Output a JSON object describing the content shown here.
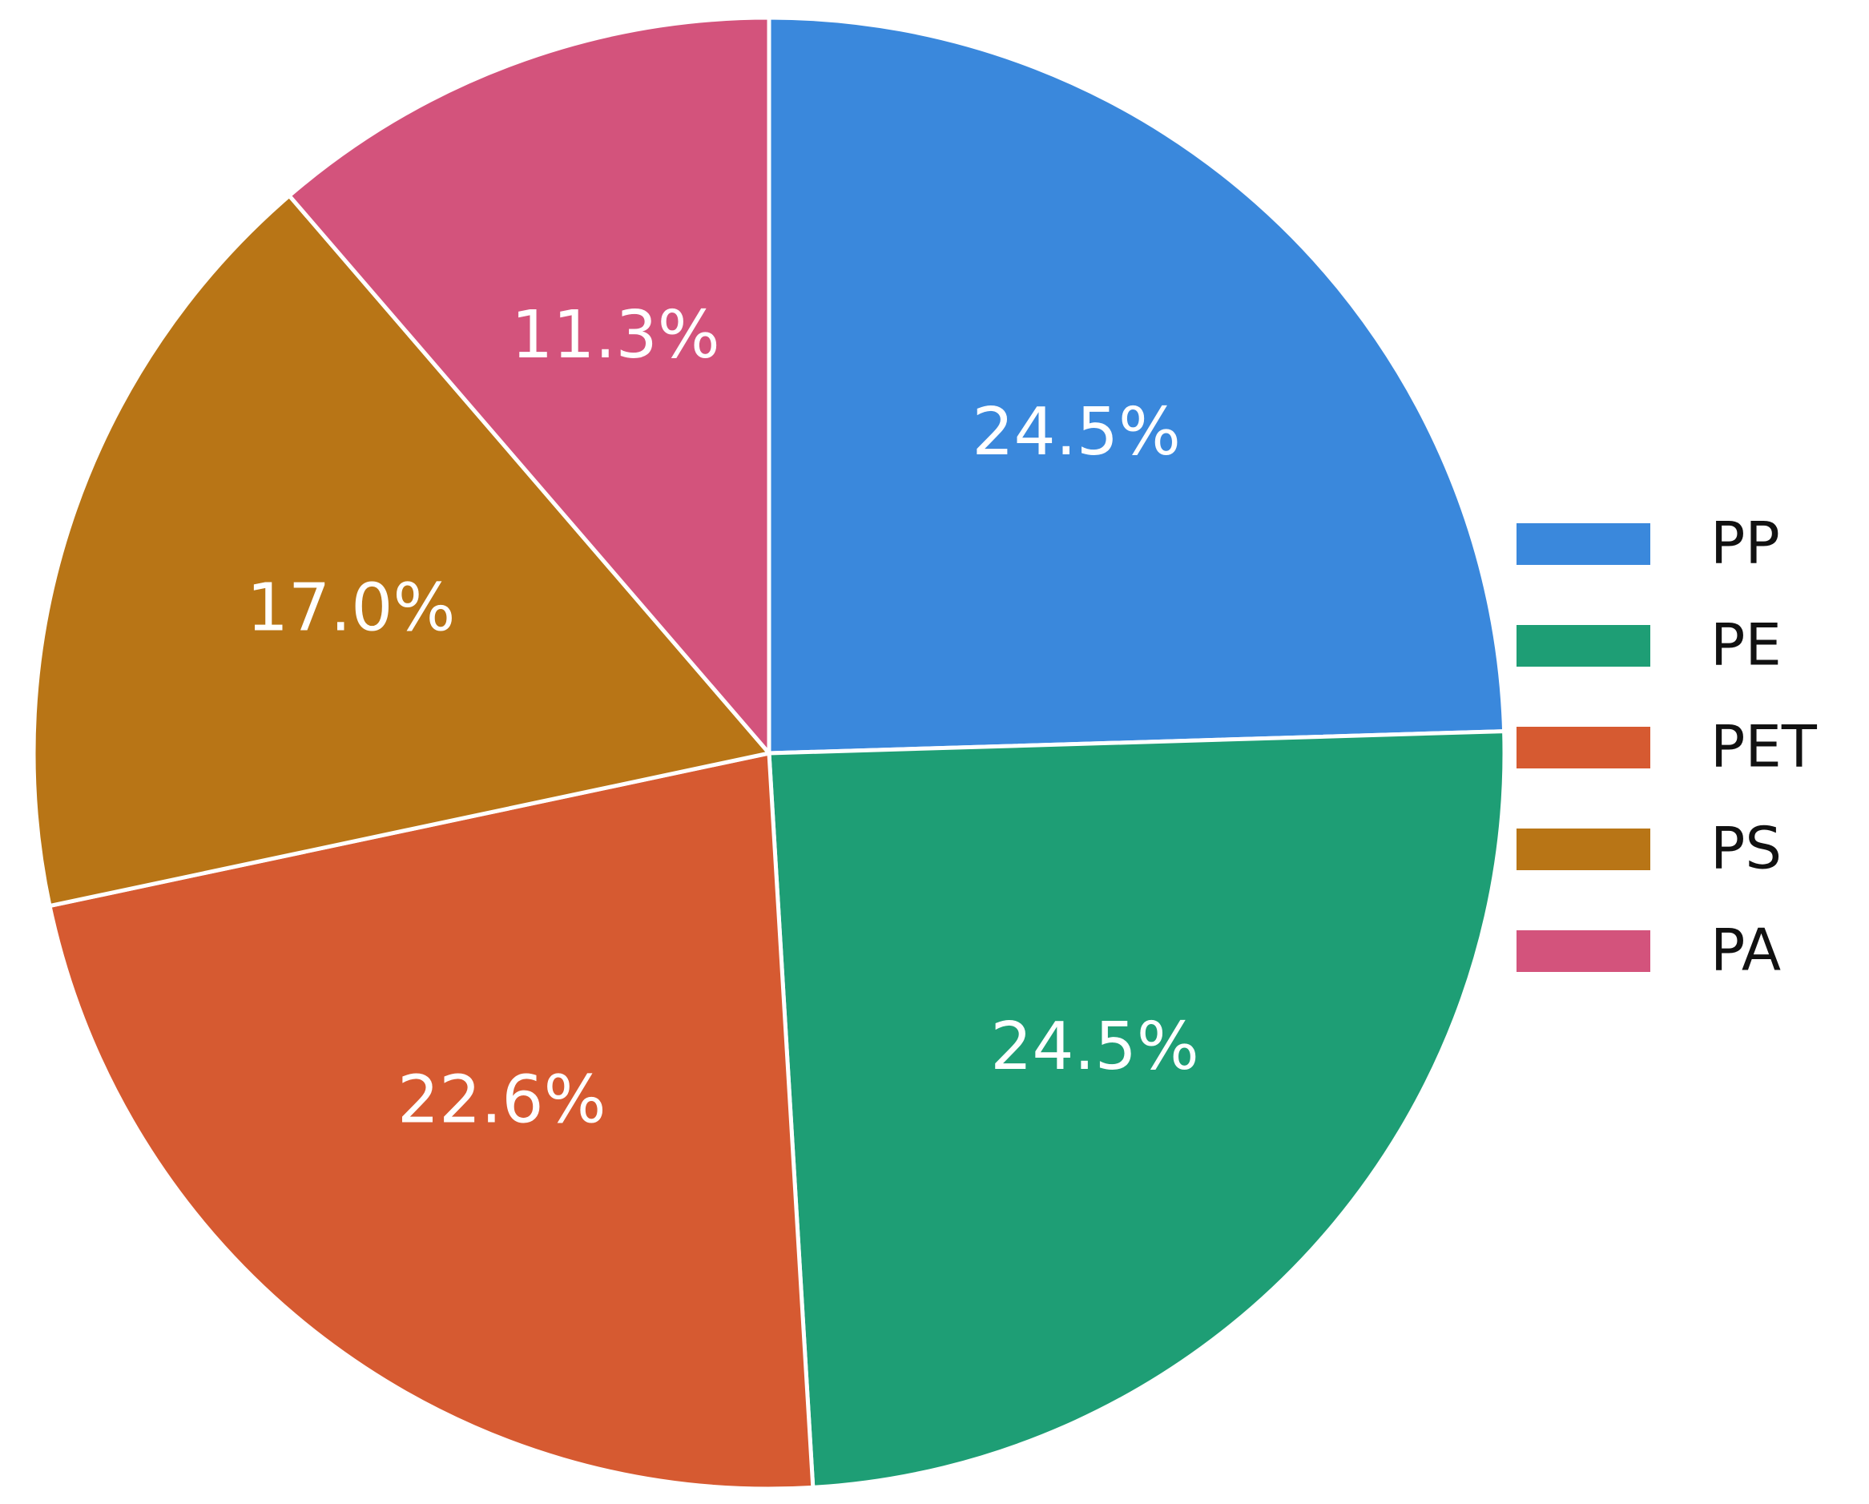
{
  "chart_data": {
    "type": "pie",
    "categories": [
      "PP",
      "PE",
      "PET",
      "PS",
      "PA"
    ],
    "values": [
      24.5,
      24.5,
      22.6,
      17.0,
      11.3
    ],
    "value_labels": [
      "24.5%",
      "24.5%",
      "22.6%",
      "17.0%",
      "11.3%"
    ],
    "colors": [
      "#3a88dc",
      "#1e9e75",
      "#d65a31",
      "#b87516",
      "#d3537c"
    ],
    "legend": "right"
  }
}
